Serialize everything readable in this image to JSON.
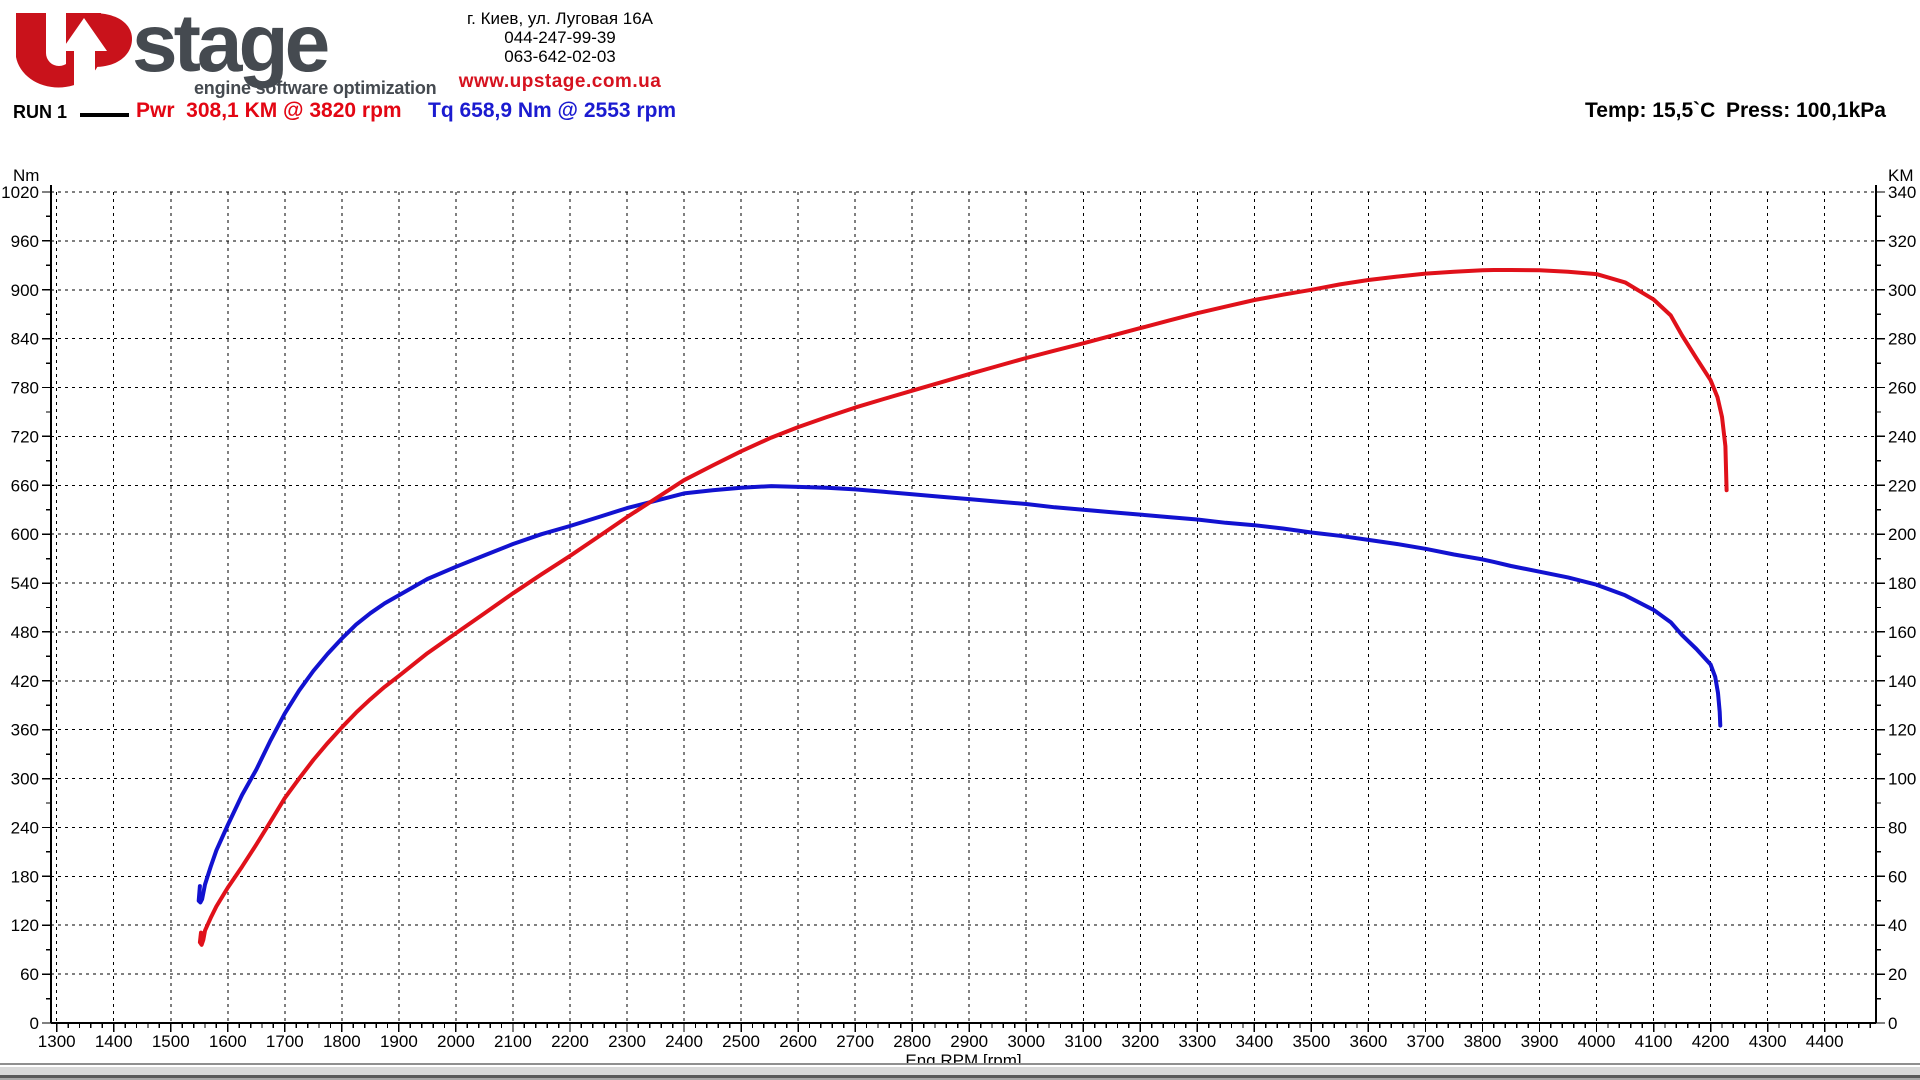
{
  "header": {
    "logo": {
      "brand": "stage",
      "tagline": "engine software optimization",
      "red": "#c9121b",
      "gray": "#454a50"
    },
    "address_line1": "г. Киев, ул. Луговая 16А",
    "phone1": "044-247-99-39",
    "phone2": "063-642-02-03",
    "website": "www.upstage.com.ua"
  },
  "run_bar": {
    "run_label": "RUN 1",
    "power_readout": "Pwr  308,1 KM @ 3820 rpm",
    "torque_readout": "Tq 658,9 Nm @ 2553 rpm",
    "temp": "Temp: 15,5`C",
    "press": "Press: 100,1kPa",
    "power_color": "#e30613",
    "torque_color": "#1b1bd0"
  },
  "chart_data": {
    "type": "line",
    "xlabel": "Eng RPM [rpm]",
    "x_range": [
      1290,
      4490
    ],
    "x_tick_min": 1300,
    "x_tick_max": 4400,
    "x_major": 100,
    "x_minor": 20,
    "grid": true,
    "grid_color": "#000000",
    "left_axis": {
      "label": "Nm",
      "range": [
        0,
        1020
      ],
      "major": 60,
      "minor": 30
    },
    "right_axis": {
      "label": "KM",
      "range": [
        0,
        340
      ],
      "major": 20,
      "minor": 10
    },
    "series": [
      {
        "name": "Tq",
        "axis": "left",
        "color": "#1212d0",
        "peak": "658,9 Nm @ 2553 rpm",
        "points": [
          [
            1551,
            168
          ],
          [
            1549,
            150
          ],
          [
            1552,
            148
          ],
          [
            1555,
            152
          ],
          [
            1560,
            170
          ],
          [
            1570,
            192
          ],
          [
            1580,
            212
          ],
          [
            1600,
            243
          ],
          [
            1625,
            280
          ],
          [
            1650,
            311
          ],
          [
            1675,
            347
          ],
          [
            1700,
            380
          ],
          [
            1725,
            408
          ],
          [
            1750,
            432
          ],
          [
            1775,
            453
          ],
          [
            1800,
            472
          ],
          [
            1825,
            489
          ],
          [
            1850,
            503
          ],
          [
            1875,
            515
          ],
          [
            1900,
            525
          ],
          [
            1950,
            545
          ],
          [
            2000,
            560
          ],
          [
            2050,
            574
          ],
          [
            2100,
            588
          ],
          [
            2150,
            600
          ],
          [
            2200,
            610
          ],
          [
            2250,
            621
          ],
          [
            2300,
            632
          ],
          [
            2350,
            641
          ],
          [
            2400,
            650
          ],
          [
            2450,
            654
          ],
          [
            2500,
            657
          ],
          [
            2553,
            659
          ],
          [
            2600,
            658
          ],
          [
            2650,
            657
          ],
          [
            2700,
            655
          ],
          [
            2750,
            652
          ],
          [
            2800,
            649
          ],
          [
            2850,
            646
          ],
          [
            2900,
            643
          ],
          [
            2950,
            640
          ],
          [
            3000,
            637
          ],
          [
            3050,
            633
          ],
          [
            3100,
            630
          ],
          [
            3150,
            627
          ],
          [
            3200,
            624
          ],
          [
            3250,
            621
          ],
          [
            3300,
            618
          ],
          [
            3350,
            614
          ],
          [
            3400,
            611
          ],
          [
            3450,
            607
          ],
          [
            3500,
            602
          ],
          [
            3550,
            598
          ],
          [
            3600,
            593
          ],
          [
            3650,
            588
          ],
          [
            3700,
            582
          ],
          [
            3750,
            575
          ],
          [
            3800,
            569
          ],
          [
            3820,
            566
          ],
          [
            3850,
            561
          ],
          [
            3900,
            554
          ],
          [
            3950,
            547
          ],
          [
            4000,
            538
          ],
          [
            4050,
            525
          ],
          [
            4100,
            507
          ],
          [
            4130,
            492
          ],
          [
            4150,
            476
          ],
          [
            4175,
            459
          ],
          [
            4200,
            440
          ],
          [
            4208,
            425
          ],
          [
            4213,
            405
          ],
          [
            4216,
            382
          ],
          [
            4217,
            365
          ]
        ]
      },
      {
        "name": "Pwr",
        "axis": "right",
        "color": "#e0111a",
        "peak": "308,1 KM @ 3820 rpm",
        "points": [
          [
            1553,
            37
          ],
          [
            1551,
            33
          ],
          [
            1554,
            32
          ],
          [
            1557,
            34
          ],
          [
            1560,
            37.8
          ],
          [
            1570,
            43
          ],
          [
            1580,
            47.7
          ],
          [
            1600,
            55.4
          ],
          [
            1625,
            64
          ],
          [
            1650,
            73
          ],
          [
            1675,
            82.5
          ],
          [
            1700,
            92
          ],
          [
            1725,
            100
          ],
          [
            1750,
            107.6
          ],
          [
            1775,
            114.5
          ],
          [
            1800,
            121
          ],
          [
            1825,
            127
          ],
          [
            1850,
            132.5
          ],
          [
            1875,
            137.5
          ],
          [
            1900,
            142
          ],
          [
            1950,
            151.3
          ],
          [
            2000,
            159.5
          ],
          [
            2050,
            167.6
          ],
          [
            2100,
            175.8
          ],
          [
            2150,
            183.6
          ],
          [
            2200,
            191.1
          ],
          [
            2250,
            199
          ],
          [
            2300,
            207
          ],
          [
            2350,
            214.5
          ],
          [
            2400,
            222.1
          ],
          [
            2450,
            228.1
          ],
          [
            2500,
            233.9
          ],
          [
            2553,
            239.5
          ],
          [
            2600,
            243.8
          ],
          [
            2650,
            247.9
          ],
          [
            2700,
            251.8
          ],
          [
            2750,
            255.3
          ],
          [
            2800,
            258.7
          ],
          [
            2850,
            262.1
          ],
          [
            2900,
            265.5
          ],
          [
            2950,
            268.8
          ],
          [
            3000,
            272.1
          ],
          [
            3050,
            275.1
          ],
          [
            3100,
            278.1
          ],
          [
            3150,
            281.2
          ],
          [
            3200,
            284.3
          ],
          [
            3250,
            287.4
          ],
          [
            3300,
            290.4
          ],
          [
            3350,
            293.1
          ],
          [
            3400,
            295.8
          ],
          [
            3450,
            298
          ],
          [
            3500,
            300
          ],
          [
            3550,
            302.2
          ],
          [
            3600,
            304
          ],
          [
            3650,
            305.4
          ],
          [
            3700,
            306.6
          ],
          [
            3750,
            307.4
          ],
          [
            3800,
            308
          ],
          [
            3820,
            308.1
          ],
          [
            3850,
            308.1
          ],
          [
            3900,
            308
          ],
          [
            3950,
            307.4
          ],
          [
            4000,
            306.4
          ],
          [
            4050,
            303
          ],
          [
            4100,
            296
          ],
          [
            4130,
            289.5
          ],
          [
            4150,
            281.3
          ],
          [
            4175,
            272
          ],
          [
            4200,
            263
          ],
          [
            4212,
            256
          ],
          [
            4220,
            248
          ],
          [
            4226,
            236
          ],
          [
            4228,
            218
          ]
        ]
      }
    ]
  }
}
